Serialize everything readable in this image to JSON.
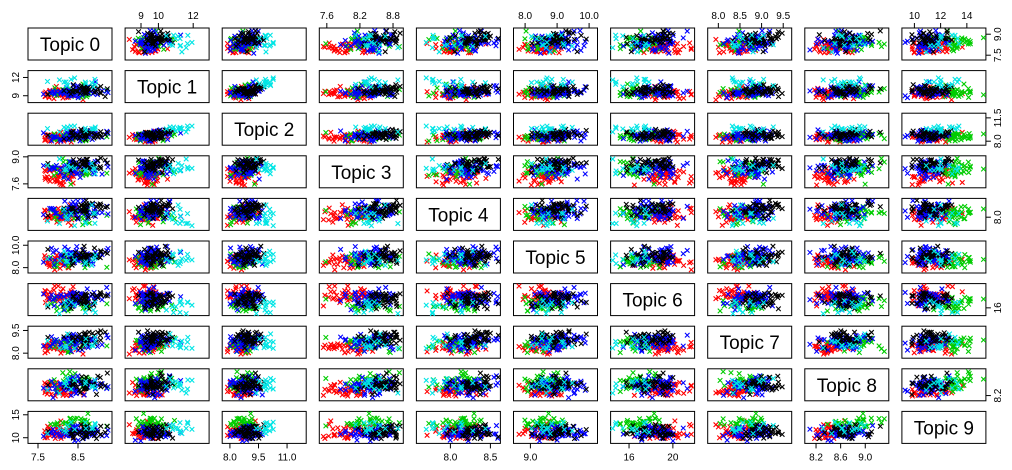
{
  "chart_data": {
    "type": "scatter",
    "kind": "scatterplot-matrix",
    "marker": "x",
    "point_colors": [
      "#ff0000",
      "#00cc00",
      "#0000ff",
      "#000000",
      "#00e5e5"
    ],
    "variables": [
      "Topic 0",
      "Topic 1",
      "Topic 2",
      "Topic 3",
      "Topic 4",
      "Topic 5",
      "Topic 6",
      "Topic 7",
      "Topic 8",
      "Topic 9"
    ],
    "ranges": [
      [
        7.3,
        9.3
      ],
      [
        8.2,
        12.8
      ],
      [
        7.7,
        11.9
      ],
      [
        7.5,
        8.95
      ],
      [
        7.6,
        8.6
      ],
      [
        7.7,
        10.2
      ],
      [
        14.5,
        21.8
      ],
      [
        7.8,
        9.65
      ],
      [
        8.05,
        9.35
      ],
      [
        9.2,
        15.3
      ]
    ],
    "centers": [
      8.4,
      9.8,
      8.8,
      8.35,
      8.15,
      8.8,
      18.2,
      8.7,
      8.65,
      11.5
    ],
    "spreads": [
      0.35,
      0.55,
      0.45,
      0.28,
      0.2,
      0.45,
      1.5,
      0.32,
      0.26,
      1.0
    ],
    "tick_labels": {
      "bottom": {
        "0": [
          "7.5",
          "8.5"
        ],
        "2": [
          "8.0",
          "9.5",
          "11.0"
        ],
        "4": [
          "8.0",
          "8.5",
          "9.0"
        ],
        "6": [
          "16",
          "20"
        ],
        "8": [
          "8.2",
          "8.6",
          "9.0"
        ]
      },
      "top": {
        "1": [
          "9",
          "10",
          "12"
        ],
        "3": [
          "7.6",
          "8.2",
          "8.8"
        ],
        "5": [
          "8.0",
          "9.0",
          "10.0"
        ],
        "7": [
          "8.0",
          "8.5",
          "9.0",
          "9.5"
        ],
        "9": [
          "10",
          "12",
          "14"
        ]
      },
      "left": {
        "1": [
          "9",
          "12"
        ],
        "3": [
          "7.6",
          "9.0"
        ],
        "5": [
          "8.0",
          "10.0"
        ],
        "7": [
          "8.0",
          "9.5"
        ],
        "9": [
          "10",
          "15"
        ]
      },
      "right": {
        "0": [
          "7.5",
          "9.0"
        ],
        "2": [
          "8.0",
          "11.5"
        ],
        "4": [
          "8.0"
        ],
        "6": [
          "16"
        ],
        "8": [
          "8.2"
        ]
      }
    },
    "grid": false,
    "legend": "none"
  }
}
